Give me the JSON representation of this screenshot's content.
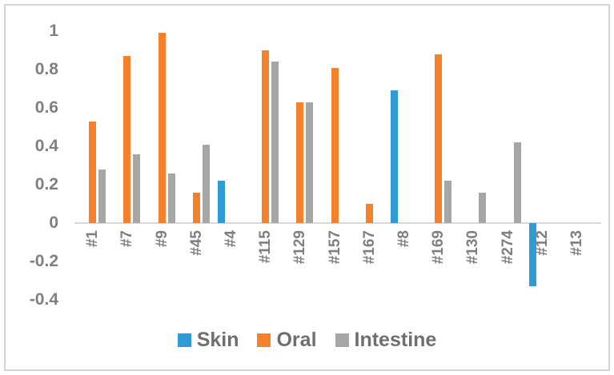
{
  "chart_data": {
    "type": "bar",
    "title": "",
    "xlabel": "",
    "ylabel": "",
    "grid": false,
    "legend_position": "bottom",
    "ylim": [
      -0.4,
      1.0
    ],
    "y_ticks": [
      1,
      0.8,
      0.6,
      0.4,
      0.2,
      0,
      -0.2,
      -0.4
    ],
    "y_tick_labels": [
      "1",
      "0.8",
      "0.6",
      "0.4",
      "0.2",
      "0",
      "-0.2",
      "-0.4"
    ],
    "categories": [
      "#1",
      "#7",
      "#9",
      "#45",
      "#4",
      "#115",
      "#129",
      "#157",
      "#167",
      "#8",
      "#169",
      "#130",
      "#274",
      "#12",
      "#13"
    ],
    "series": [
      {
        "name": "Skin",
        "color": "#2e9bd5",
        "values": [
          null,
          null,
          null,
          null,
          0.22,
          null,
          null,
          null,
          null,
          0.69,
          null,
          null,
          null,
          -0.33,
          null
        ]
      },
      {
        "name": "Oral",
        "color": "#f6812c",
        "values": [
          0.53,
          0.87,
          0.99,
          0.16,
          null,
          0.9,
          0.63,
          0.81,
          0.1,
          null,
          0.88,
          null,
          null,
          null,
          null
        ]
      },
      {
        "name": "Intestine",
        "color": "#a6a6a6",
        "values": [
          0.28,
          0.36,
          0.26,
          0.41,
          null,
          0.84,
          0.63,
          null,
          null,
          null,
          0.22,
          0.16,
          0.42,
          null,
          null
        ]
      }
    ]
  },
  "colors": {
    "background": "#ffffff",
    "frame_border": "#d4d4d4",
    "axis_line": "#d9d9d9",
    "tick_label": "#7f7f7f",
    "legend_label": "#6f6f6f"
  }
}
